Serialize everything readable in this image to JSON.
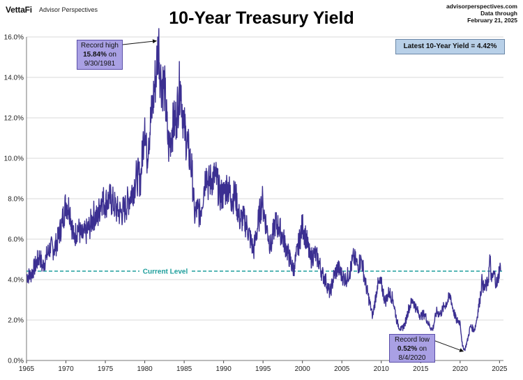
{
  "header": {
    "logo": "VettaFi",
    "logo_sub": "Advisor Perspectives",
    "title": "10-Year Treasury Yield",
    "source_line1": "advisorperspectives.com",
    "source_line2": "Data through",
    "source_line3": "February 21, 2025"
  },
  "latest_box": "Latest 10-Year Yield = 4.42%",
  "annotations": {
    "high_line1": "Record high",
    "high_value": "15.84%",
    "high_on": " on",
    "high_date": "9/30/1981",
    "low_line1": "Record low",
    "low_value": "0.52%",
    "low_on": " on",
    "low_date": "8/4/2020"
  },
  "colors": {
    "series": "#3b2f91",
    "current_level": "#1f9f9c",
    "grid": "#d9d9d9",
    "callout_fill": "#a9a0e4",
    "latest_fill": "#b8d0e8"
  },
  "chart_data": {
    "type": "line",
    "xlim": [
      1965,
      2025.5
    ],
    "ylim": [
      0,
      16
    ],
    "x_ticks": [
      "1965",
      "1970",
      "1975",
      "1980",
      "1985",
      "1990",
      "1995",
      "2000",
      "2005",
      "2010",
      "2015",
      "2020",
      "2025"
    ],
    "y_ticks": [
      "0.0%",
      "2.0%",
      "4.0%",
      "6.0%",
      "8.0%",
      "10.0%",
      "12.0%",
      "14.0%",
      "16.0%"
    ],
    "current_level": {
      "label": "Current Level",
      "value": 4.42
    },
    "record_high": {
      "x": 1981.75,
      "y": 15.84
    },
    "record_low": {
      "x": 2020.59,
      "y": 0.52
    },
    "latest": {
      "x": 2025.14,
      "y": 4.42
    },
    "series": [
      {
        "x": [
          1965.0,
          1965.5,
          1966.0,
          1966.7,
          1967.0,
          1967.5,
          1968.0,
          1968.5,
          1969.0,
          1969.5,
          1970.0,
          1970.5,
          1971.0,
          1971.5,
          1972.0,
          1972.5,
          1973.0,
          1973.5,
          1974.0,
          1974.5,
          1975.0,
          1975.5,
          1976.0,
          1976.5,
          1977.0,
          1977.5,
          1978.0,
          1978.5,
          1979.0,
          1979.5,
          1980.0,
          1980.25,
          1980.5,
          1981.0,
          1981.5,
          1981.75,
          1982.0,
          1982.5,
          1983.0,
          1983.5,
          1984.0,
          1984.5,
          1985.0,
          1985.5,
          1986.0,
          1986.3,
          1986.7,
          1987.0,
          1987.5,
          1987.8,
          1988.0,
          1988.5,
          1989.0,
          1989.5,
          1990.0,
          1990.5,
          1991.0,
          1991.5,
          1992.0,
          1992.5,
          1993.0,
          1993.8,
          1994.0,
          1994.9,
          1995.0,
          1995.5,
          1996.0,
          1996.5,
          1997.0,
          1997.5,
          1998.0,
          1998.8,
          1999.0,
          2000.0,
          2000.5,
          2001.0,
          2001.5,
          2002.0,
          2002.5,
          2003.0,
          2003.5,
          2004.0,
          2004.5,
          2005.0,
          2005.5,
          2006.0,
          2006.5,
          2007.0,
          2007.5,
          2008.0,
          2008.9,
          2009.0,
          2009.5,
          2010.0,
          2010.5,
          2011.0,
          2011.5,
          2012.0,
          2012.5,
          2013.0,
          2013.5,
          2014.0,
          2014.5,
          2015.0,
          2015.5,
          2016.0,
          2016.5,
          2017.0,
          2017.5,
          2018.0,
          2018.8,
          2019.0,
          2019.5,
          2020.0,
          2020.3,
          2020.59,
          2021.0,
          2021.3,
          2021.8,
          2022.0,
          2022.5,
          2022.8,
          2023.0,
          2023.5,
          2023.8,
          2024.0,
          2024.3,
          2024.7,
          2025.0,
          2025.14
        ],
        "values": [
          4.2,
          4.2,
          4.6,
          5.2,
          4.6,
          5.1,
          5.6,
          5.5,
          6.0,
          6.8,
          7.8,
          7.5,
          6.0,
          6.6,
          6.1,
          6.3,
          6.6,
          7.2,
          7.0,
          8.0,
          7.8,
          8.0,
          7.8,
          7.4,
          7.3,
          7.5,
          8.0,
          8.5,
          9.1,
          9.0,
          12.0,
          10.0,
          11.0,
          12.6,
          14.5,
          15.84,
          14.0,
          13.5,
          10.5,
          11.5,
          12.0,
          13.8,
          11.5,
          10.5,
          9.3,
          7.2,
          7.5,
          7.2,
          8.5,
          9.5,
          8.7,
          9.0,
          9.1,
          8.2,
          8.2,
          8.7,
          8.0,
          8.2,
          7.0,
          7.0,
          6.6,
          5.4,
          5.9,
          8.0,
          7.6,
          6.5,
          5.6,
          6.8,
          6.6,
          6.1,
          5.5,
          4.5,
          4.7,
          6.7,
          6.0,
          5.0,
          5.3,
          5.0,
          4.3,
          3.9,
          3.3,
          4.2,
          4.6,
          4.2,
          4.0,
          4.4,
          5.1,
          4.7,
          5.0,
          3.8,
          2.2,
          2.4,
          3.7,
          3.8,
          2.9,
          3.4,
          3.0,
          1.9,
          1.5,
          1.8,
          2.6,
          3.0,
          2.5,
          2.2,
          2.3,
          1.8,
          1.5,
          2.4,
          2.3,
          2.7,
          3.2,
          2.7,
          2.0,
          1.9,
          0.7,
          0.52,
          1.1,
          1.7,
          1.5,
          1.8,
          3.0,
          4.0,
          3.5,
          3.8,
          5.0,
          3.9,
          4.3,
          3.7,
          4.6,
          4.42
        ]
      }
    ]
  }
}
